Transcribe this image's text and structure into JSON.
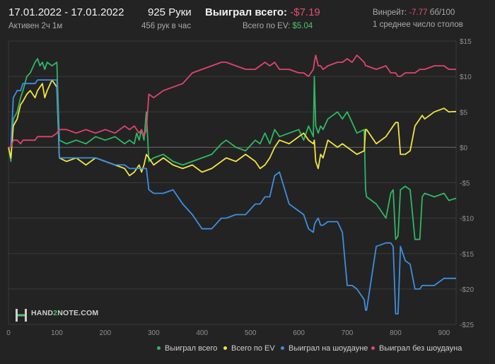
{
  "header": {
    "date_range": "17.01.2022 - 17.01.2022",
    "active_time": "Активен 2ч 1м",
    "hands": "925 Руки",
    "hands_per_hour": "456 рук в час",
    "total_won_label": "Выиграл всего:",
    "total_won_value": "-$7.19",
    "ev_label": "Всего по EV:",
    "ev_value": "$5.04",
    "winrate_label": "Винрейт:",
    "winrate_value": "-7.77",
    "winrate_unit": "бб/100",
    "tables": "1 среднее число столов"
  },
  "logo": {
    "part1": "HAND",
    "part2": "2",
    "part3": "NOTE.COM"
  },
  "colors": {
    "green": "#2fb863",
    "yellow": "#f0e442",
    "blue": "#3d8fe0",
    "pink": "#e0446e",
    "accent_negative": "#e0506f",
    "accent_ev": "#4fc46a"
  },
  "chart_data": {
    "type": "line",
    "xlim": [
      0,
      925
    ],
    "ylim": [
      -25,
      15
    ],
    "x_ticks": [
      0,
      100,
      200,
      300,
      400,
      500,
      600,
      700,
      800,
      900
    ],
    "y_ticks": [
      15,
      10,
      5,
      0,
      -5,
      -10,
      -15,
      -20,
      -25
    ],
    "y_tick_labels": [
      "$15",
      "$10",
      "$5",
      "$0",
      "-$5",
      "-$10",
      "-$15",
      "-$20",
      "-$25"
    ],
    "grid": true,
    "legend_position": "bottom-right",
    "series": [
      {
        "name": "Выиграл всего",
        "color": "#2fb863",
        "x": [
          0,
          5,
          10,
          18,
          25,
          30,
          38,
          45,
          55,
          60,
          65,
          70,
          75,
          80,
          90,
          100,
          105,
          120,
          140,
          160,
          180,
          200,
          220,
          240,
          250,
          260,
          265,
          270,
          275,
          280,
          285,
          290,
          300,
          320,
          340,
          360,
          380,
          400,
          420,
          440,
          450,
          470,
          490,
          510,
          520,
          530,
          540,
          550,
          560,
          580,
          600,
          610,
          620,
          630,
          632,
          635,
          640,
          645,
          650,
          660,
          680,
          690,
          700,
          710,
          720,
          735,
          738,
          740,
          760,
          780,
          790,
          795,
          800,
          805,
          810,
          820,
          830,
          840,
          850,
          855,
          860,
          880,
          900,
          910,
          925
        ],
        "y": [
          0,
          -2,
          4,
          5,
          7,
          8,
          10,
          10.5,
          12,
          12.5,
          11.5,
          12,
          11,
          12,
          11.5,
          12,
          1,
          0.5,
          1,
          0.5,
          1.5,
          1,
          1.5,
          0.5,
          1,
          0.5,
          2,
          1,
          2.5,
          1,
          5,
          -2,
          -1.5,
          -1,
          -2,
          -2.5,
          -2,
          -1.5,
          -1,
          0.5,
          1,
          0,
          -0.5,
          1,
          0.5,
          2,
          0.5,
          2.5,
          1.5,
          2,
          2.5,
          1,
          3,
          1.5,
          10,
          3,
          2,
          3,
          2.5,
          4,
          5,
          4,
          5,
          3.5,
          2,
          2.5,
          -6,
          -7,
          -8,
          -10,
          -6.5,
          -6,
          -13,
          -12.5,
          -6,
          -5.5,
          -6,
          -13,
          -13,
          -7,
          -6.5,
          -7,
          -6.5,
          -7.5,
          -7.19
        ]
      },
      {
        "name": "Всего по EV",
        "color": "#f0e442",
        "x": [
          0,
          5,
          10,
          18,
          25,
          30,
          38,
          45,
          55,
          60,
          65,
          70,
          75,
          80,
          90,
          100,
          105,
          120,
          140,
          160,
          180,
          200,
          220,
          240,
          250,
          260,
          265,
          270,
          275,
          280,
          285,
          290,
          300,
          320,
          340,
          360,
          380,
          400,
          420,
          440,
          450,
          470,
          490,
          510,
          520,
          530,
          540,
          550,
          560,
          580,
          600,
          610,
          620,
          630,
          632,
          635,
          640,
          645,
          650,
          660,
          680,
          690,
          700,
          710,
          720,
          735,
          738,
          740,
          760,
          780,
          790,
          795,
          800,
          805,
          810,
          820,
          830,
          840,
          850,
          855,
          860,
          880,
          900,
          910,
          925
        ],
        "y": [
          0,
          -1.5,
          3,
          4,
          6,
          6.5,
          7.5,
          8,
          7,
          8,
          8.5,
          9,
          7,
          8,
          9.5,
          8.5,
          -1.5,
          -2,
          -1.5,
          -2.5,
          -1.5,
          -2,
          -2.5,
          -3,
          -4,
          -3.5,
          -3,
          -2.5,
          -3.5,
          -2.5,
          -1,
          -1.5,
          -2.5,
          -1.5,
          -2.5,
          -3,
          -2.5,
          -3.5,
          -3,
          -2,
          -1.5,
          -2,
          -1,
          -2,
          -3,
          -2.5,
          -1.5,
          0,
          1,
          0.5,
          1.5,
          2,
          1,
          0.5,
          1,
          -2,
          -3,
          -1,
          -1.5,
          1,
          0,
          0.5,
          0,
          -0.5,
          -1,
          -0.5,
          2.5,
          2.5,
          0.5,
          1.5,
          2.5,
          3,
          3.5,
          3.5,
          -1,
          -1,
          -0.5,
          3,
          4,
          4.5,
          4,
          5,
          5.5,
          5,
          5.04
        ]
      },
      {
        "name": "Выиграл на шоудауне",
        "color": "#3d8fe0",
        "x": [
          0,
          5,
          10,
          18,
          25,
          30,
          38,
          45,
          55,
          60,
          65,
          70,
          75,
          80,
          90,
          100,
          105,
          120,
          140,
          160,
          180,
          200,
          220,
          240,
          250,
          260,
          265,
          270,
          275,
          280,
          285,
          290,
          300,
          320,
          340,
          360,
          380,
          400,
          420,
          440,
          450,
          470,
          490,
          510,
          520,
          530,
          540,
          550,
          560,
          580,
          600,
          610,
          620,
          630,
          632,
          635,
          640,
          645,
          650,
          660,
          680,
          690,
          700,
          710,
          720,
          735,
          738,
          740,
          760,
          780,
          790,
          795,
          800,
          805,
          810,
          820,
          830,
          840,
          850,
          855,
          860,
          880,
          900,
          910,
          925
        ],
        "y": [
          0,
          0,
          7,
          8,
          8,
          9,
          9,
          9,
          9,
          9.5,
          9.5,
          9.5,
          9.5,
          9.5,
          9.5,
          9.5,
          -1.5,
          -1.5,
          -1.5,
          -1.5,
          -1.5,
          -2,
          -2.5,
          -2.5,
          -3,
          -3,
          -3,
          -3,
          -3,
          -3,
          -3,
          -6,
          -6.5,
          -6.5,
          -6,
          -8,
          -9.5,
          -11.5,
          -11.5,
          -10,
          -10,
          -9.5,
          -9.5,
          -8,
          -8,
          -7,
          -7,
          -4,
          -3.5,
          -8,
          -9,
          -9.5,
          -11.5,
          -12,
          -11,
          -10.5,
          -10,
          -11,
          -11,
          -10.5,
          -10.5,
          -12,
          -19.5,
          -19.5,
          -20,
          -21.5,
          -23,
          -23,
          -14,
          -13.5,
          -13.5,
          -14,
          -23.5,
          -23.5,
          -14,
          -16,
          -16.5,
          -20,
          -20,
          -19.5,
          -19.5,
          -19.5,
          -18.5,
          -18.5,
          -18.5
        ]
      },
      {
        "name": "Выиграл без шоудауна",
        "color": "#e0446e",
        "x": [
          0,
          5,
          10,
          18,
          25,
          30,
          38,
          45,
          55,
          60,
          65,
          70,
          75,
          80,
          90,
          100,
          105,
          120,
          140,
          160,
          180,
          200,
          220,
          240,
          250,
          260,
          265,
          270,
          275,
          280,
          285,
          290,
          300,
          320,
          340,
          360,
          380,
          400,
          420,
          440,
          450,
          470,
          490,
          510,
          520,
          530,
          540,
          550,
          560,
          580,
          600,
          610,
          620,
          630,
          632,
          635,
          640,
          645,
          650,
          660,
          680,
          690,
          700,
          710,
          720,
          735,
          738,
          740,
          760,
          780,
          790,
          795,
          800,
          805,
          810,
          820,
          830,
          840,
          850,
          855,
          860,
          880,
          900,
          910,
          925
        ],
        "y": [
          0,
          0,
          1,
          1,
          0.5,
          1,
          1,
          1,
          1,
          1.5,
          1.5,
          1.5,
          1.5,
          1.5,
          1.5,
          2,
          2.5,
          2.5,
          2,
          2.5,
          2,
          2.5,
          2,
          3,
          2.5,
          3,
          2.5,
          2,
          2.5,
          1.5,
          2.5,
          7.5,
          7,
          8,
          8.5,
          9,
          10.5,
          11,
          11.5,
          12,
          12,
          11.5,
          11,
          11,
          11.5,
          12,
          11.5,
          12,
          11,
          11,
          10.5,
          10.5,
          10,
          11,
          12,
          13,
          11.5,
          11.5,
          11,
          11.5,
          12,
          12,
          12.5,
          12,
          13,
          12,
          11.5,
          11.5,
          11,
          11.5,
          10.5,
          10.5,
          10.5,
          10,
          10,
          10.5,
          10.5,
          10.5,
          11,
          11,
          11,
          11.5,
          11.5,
          11,
          11
        ]
      }
    ]
  }
}
